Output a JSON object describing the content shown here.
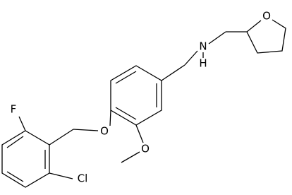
{
  "atoms": [
    {
      "label": "F"
    },
    {
      "label": "Cl"
    },
    {
      "label": "O"
    },
    {
      "label": "O"
    },
    {
      "label": "N"
    },
    {
      "label": "H"
    },
    {
      "label": "O"
    }
  ]
}
